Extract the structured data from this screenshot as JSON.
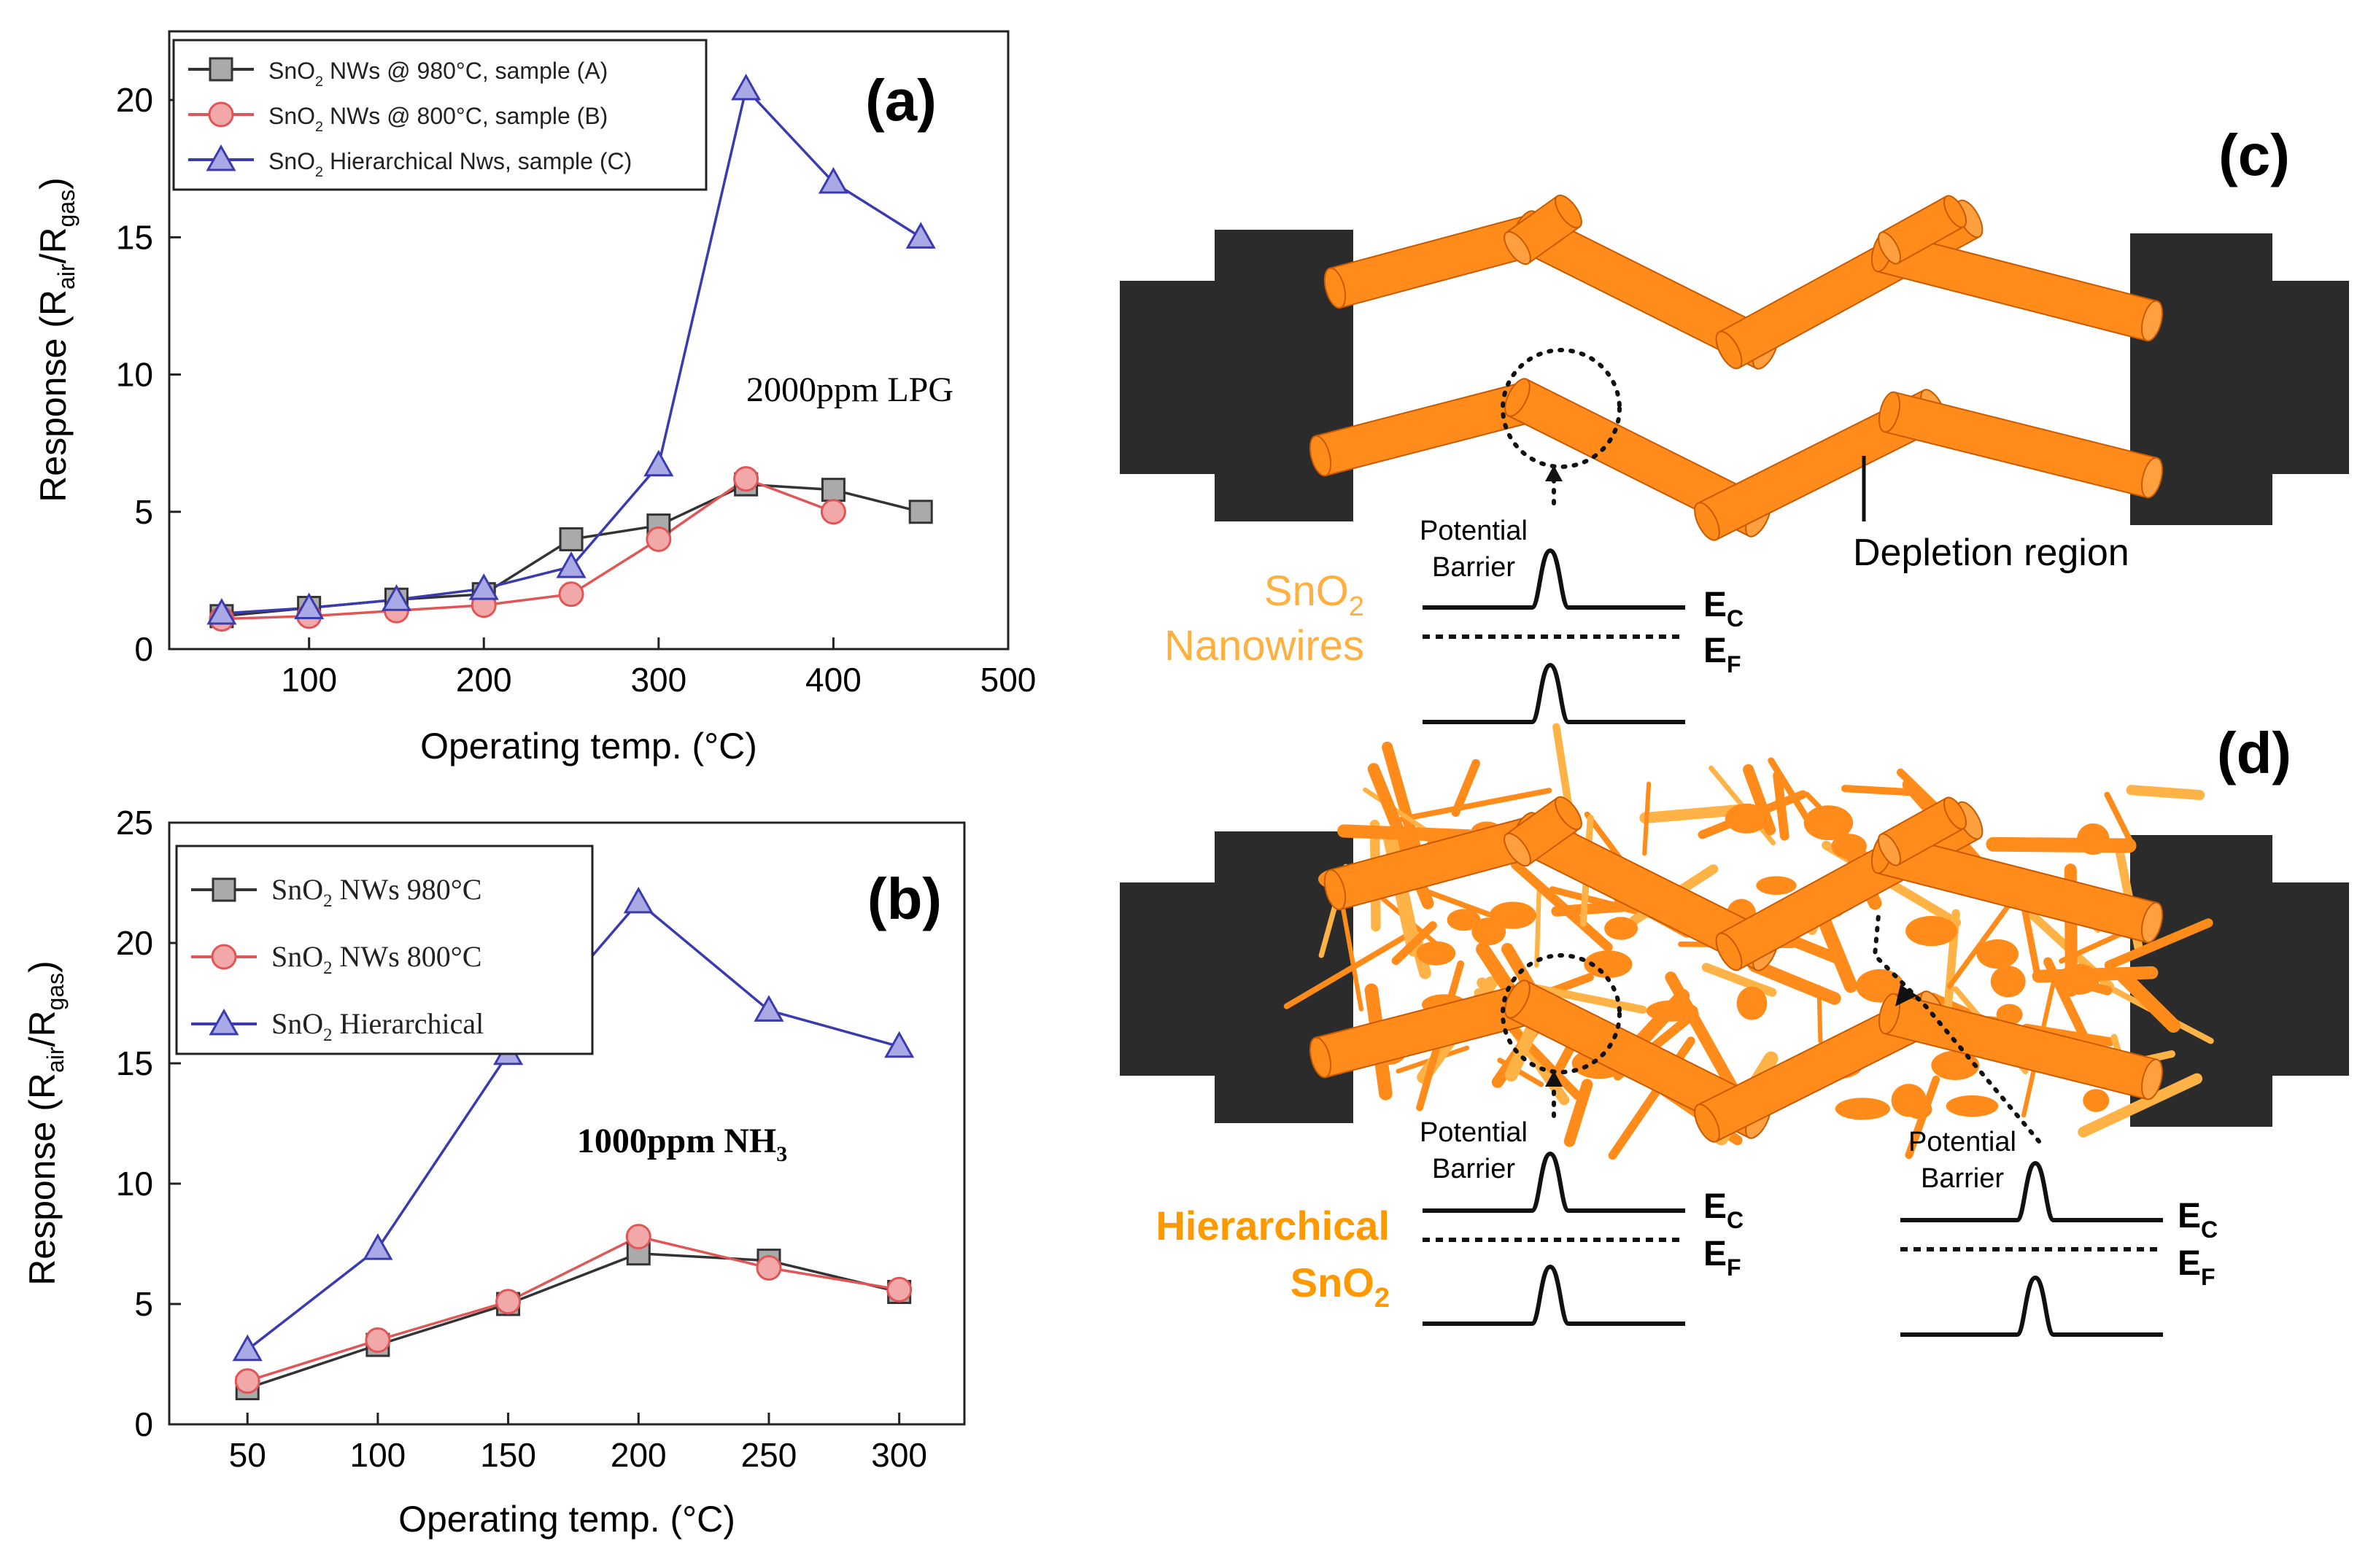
{
  "chart_data": [
    {
      "panel": "(a)",
      "type": "line",
      "xlabel": "Operating temp. (°C)",
      "ylabel_main": "Response (R",
      "ylabel_sub1": "air",
      "ylabel_mid": "/R",
      "ylabel_sub2": "gas",
      "ylabel_end": ")",
      "xlim": [
        20,
        500
      ],
      "ylim": [
        0,
        22.5
      ],
      "xticks": [
        100,
        200,
        300,
        400,
        500
      ],
      "yticks": [
        0,
        5,
        10,
        15,
        20
      ],
      "annotation": "2000ppm LPG",
      "series": [
        {
          "name": "SnO2 NWs @ 980°C, sample (A)",
          "label_pre": "SnO",
          "label_sub": "2",
          "label_post": " NWs @ 980°C, sample (A)",
          "marker": "square",
          "color": "#333333",
          "fill": "#aaaaaa",
          "x": [
            50,
            100,
            150,
            200,
            250,
            300,
            350,
            400,
            450
          ],
          "y": [
            1.2,
            1.5,
            1.8,
            2.0,
            4.0,
            4.5,
            6.0,
            5.8,
            5.0
          ]
        },
        {
          "name": "SnO2 NWs @ 800°C, sample (B)",
          "label_pre": "SnO",
          "label_sub": "2",
          "label_post": " NWs @ 800°C, sample (B)",
          "marker": "circle",
          "color": "#e05555",
          "fill": "#f2a8a8",
          "x": [
            50,
            100,
            150,
            200,
            250,
            300,
            350,
            400
          ],
          "y": [
            1.1,
            1.2,
            1.4,
            1.6,
            2.0,
            4.0,
            6.2,
            5.0
          ]
        },
        {
          "name": "SnO2 Hierarchical Nws, sample (C)",
          "label_pre": "SnO",
          "label_sub": "2",
          "label_post": " Hierarchical Nws, sample (C)",
          "marker": "triangle",
          "color": "#3b3bb0",
          "fill": "#a9a9e6",
          "x": [
            50,
            100,
            150,
            200,
            250,
            300,
            350,
            400,
            450
          ],
          "y": [
            1.3,
            1.5,
            1.8,
            2.2,
            3.0,
            6.7,
            20.4,
            17.0,
            15.0
          ]
        }
      ]
    },
    {
      "panel": "(b)",
      "type": "line",
      "xlabel": "Operating temp. (°C)",
      "ylabel_main": "Response (R",
      "ylabel_sub1": "air",
      "ylabel_mid": "/R",
      "ylabel_sub2": "gas",
      "ylabel_end": ")",
      "xlim": [
        20,
        325
      ],
      "ylim": [
        0,
        25
      ],
      "xticks": [
        50,
        100,
        150,
        200,
        250,
        300
      ],
      "yticks": [
        0,
        5,
        10,
        15,
        20,
        25
      ],
      "annotation_pre": "1000ppm NH",
      "annotation_sub": "3",
      "series": [
        {
          "name": "SnO2 NWs 980°C",
          "label_pre": "SnO",
          "label_sub": "2",
          "label_post": " NWs 980°C",
          "marker": "square",
          "color": "#333333",
          "fill": "#aaaaaa",
          "x": [
            50,
            100,
            150,
            200,
            250,
            300
          ],
          "y": [
            1.5,
            3.3,
            5.0,
            7.1,
            6.8,
            5.5
          ]
        },
        {
          "name": "SnO2 NWs 800°C",
          "label_pre": "SnO",
          "label_sub": "2",
          "label_post": " NWs 800°C",
          "marker": "circle",
          "color": "#e05555",
          "fill": "#f2a8a8",
          "x": [
            50,
            100,
            150,
            200,
            250,
            300
          ],
          "y": [
            1.8,
            3.5,
            5.1,
            7.8,
            6.5,
            5.6
          ]
        },
        {
          "name": "SnO2 Hierarchical",
          "label_pre": "SnO",
          "label_sub": "2",
          "label_post": " Hierarchical",
          "marker": "triangle",
          "color": "#3b3bb0",
          "fill": "#a9a9e6",
          "x": [
            50,
            100,
            150,
            200,
            250,
            300
          ],
          "y": [
            3.1,
            7.3,
            15.4,
            21.7,
            17.2,
            15.7
          ]
        }
      ]
    }
  ],
  "diagrams": {
    "c": {
      "label": "(c)",
      "potential_barrier": [
        "Potential",
        "Barrier"
      ],
      "ec_main": "E",
      "ec_sub": "C",
      "ef_main": "E",
      "ef_sub": "F",
      "material_pre": "SnO",
      "material_sub": "2",
      "material_line2": "Nanowires",
      "depletion": "Depletion region"
    },
    "d": {
      "label": "(d)",
      "potential_barrier": [
        "Potential",
        "Barrier"
      ],
      "ec_main": "E",
      "ec_sub": "C",
      "ef_main": "E",
      "ef_sub": "F",
      "material_line1": "Hierarchical",
      "material_pre": "SnO",
      "material_sub": "2"
    },
    "colors": {
      "nanowire": "#ff8c1a",
      "nanowire_edge": "#c85a00",
      "electrode": "#2b2b2b",
      "material_c": "#ffb040",
      "material_d": "#ff9900"
    }
  }
}
